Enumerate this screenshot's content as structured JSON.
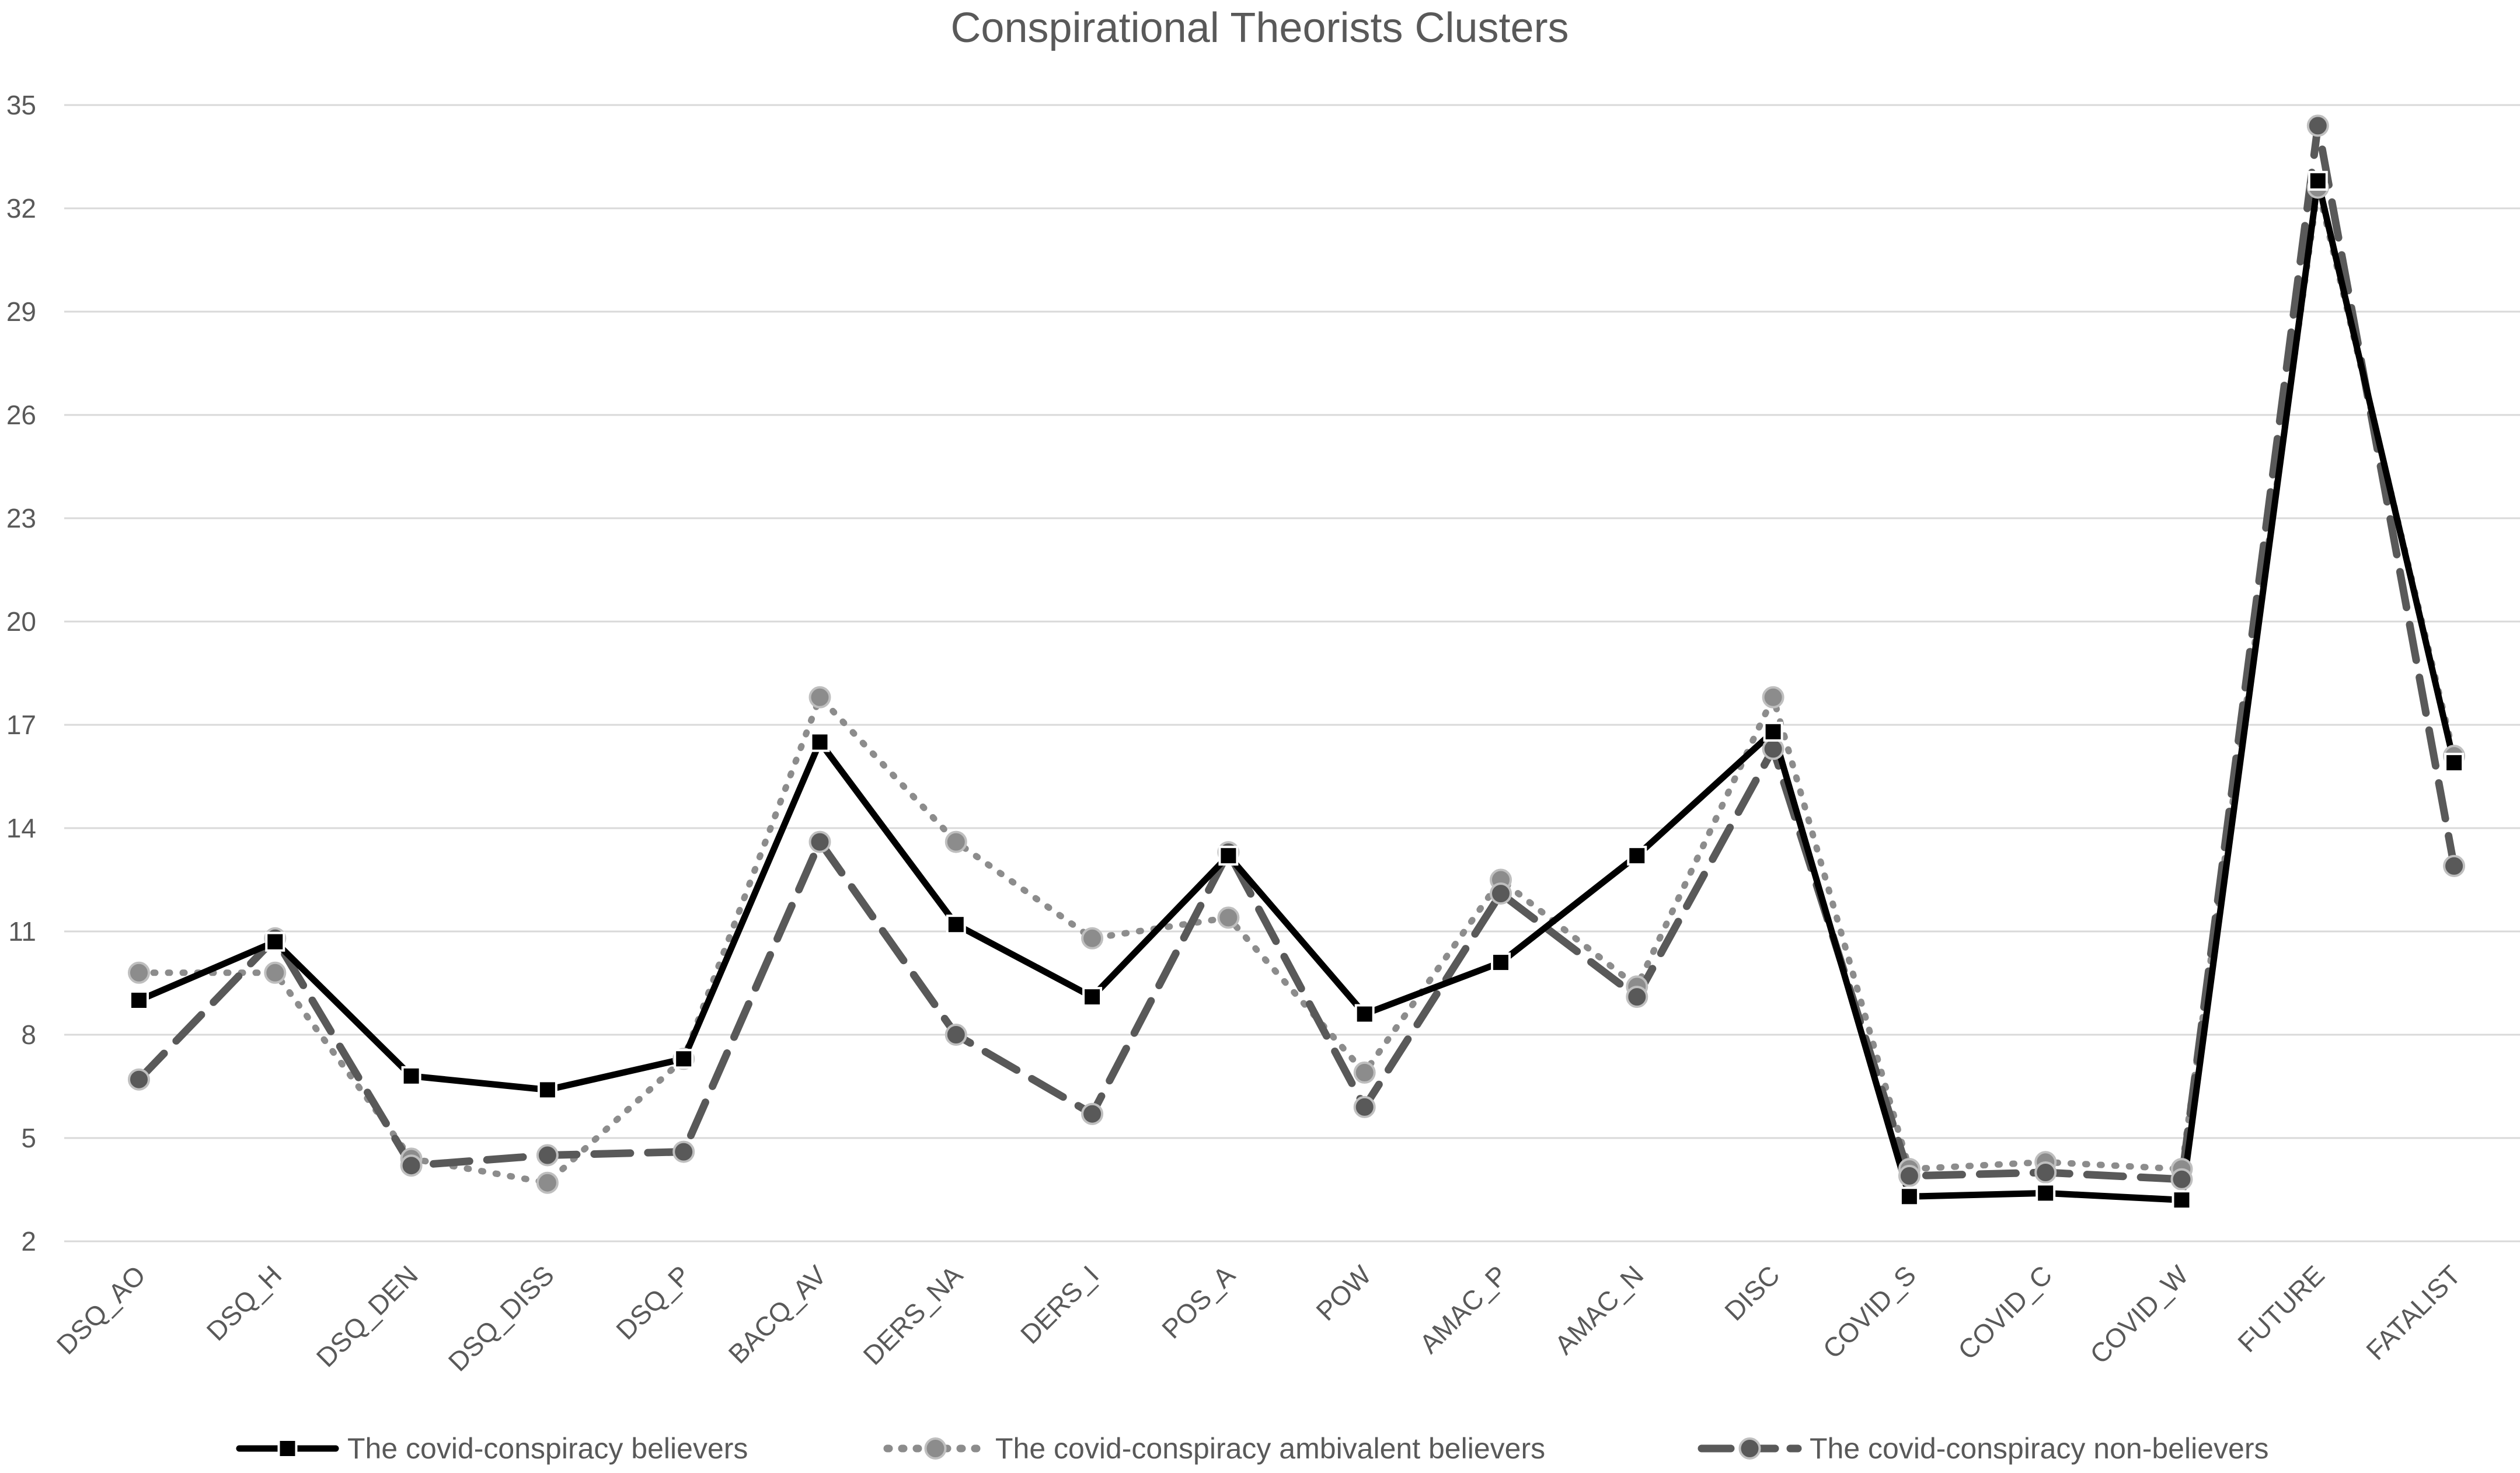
{
  "chart_data": {
    "type": "line",
    "title": "Conspirational Theorists Clusters",
    "xlabel": "",
    "ylabel": "",
    "ylim": [
      2,
      35
    ],
    "yticks": [
      2,
      5,
      8,
      11,
      14,
      17,
      20,
      23,
      26,
      29,
      32,
      35
    ],
    "grid": true,
    "legend_position": "bottom",
    "categories": [
      "DSQ_AO",
      "DSQ_H",
      "DSQ_DEN",
      "DSQ_DISS",
      "DSQ_P",
      "BACQ_AV",
      "DERS_NA",
      "DERS_I",
      "POS_A",
      "POW",
      "AMAC_P",
      "AMAC_N",
      "DISC",
      "COVID_S",
      "COVID_C",
      "COVID_W",
      "FUTURE",
      "FATALIST"
    ],
    "series": [
      {
        "name": "The covid-conspiracy believers",
        "color": "#000000",
        "style": "solid",
        "marker": "square",
        "values": [
          9.0,
          10.7,
          6.8,
          6.4,
          7.3,
          16.5,
          11.2,
          9.1,
          13.2,
          8.6,
          10.1,
          13.2,
          16.8,
          3.3,
          3.4,
          3.2,
          32.8,
          15.9
        ]
      },
      {
        "name": "The covid-conspiracy ambivalent believers",
        "color": "#8c8c8c",
        "style": "dotted",
        "marker": "circle",
        "values": [
          9.8,
          9.8,
          4.4,
          3.7,
          7.3,
          17.8,
          13.6,
          10.8,
          11.4,
          6.9,
          12.5,
          9.4,
          17.8,
          4.1,
          4.3,
          4.1,
          32.6,
          16.1
        ]
      },
      {
        "name": "The covid-conspiracy non-believers",
        "color": "#595959",
        "style": "dashed",
        "marker": "circle",
        "values": [
          6.7,
          10.8,
          4.2,
          4.5,
          4.6,
          13.6,
          8.0,
          5.7,
          13.3,
          5.9,
          12.1,
          9.1,
          16.3,
          3.9,
          4.0,
          3.8,
          34.4,
          12.9
        ]
      }
    ]
  }
}
